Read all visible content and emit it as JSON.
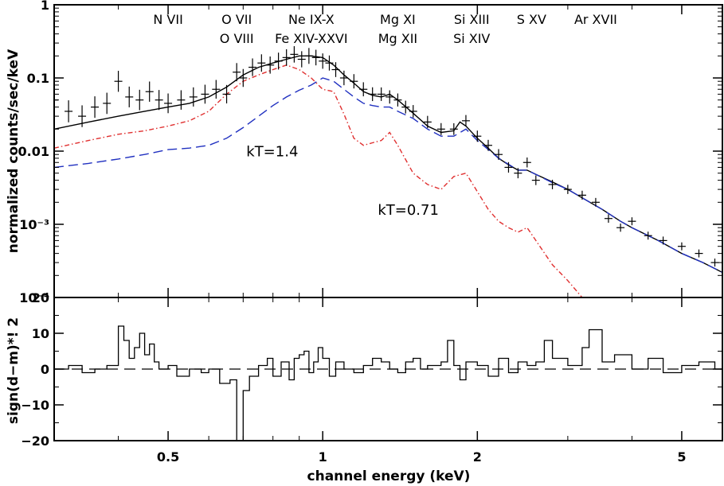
{
  "chart_data": [
    {
      "type": "line",
      "panel": "spectrum",
      "title": "",
      "xlabel": "channel energy (keV)",
      "ylabel": "normalized counts/sec/keV",
      "xscale": "log",
      "yscale": "log",
      "xlim": [
        0.3,
        6.0
      ],
      "ylim": [
        0.0001,
        1
      ],
      "yticks": [
        {
          "value": 1,
          "label": "1"
        },
        {
          "value": 0.1,
          "label": "0.1"
        },
        {
          "value": 0.01,
          "label": "0.01"
        },
        {
          "value": 0.001,
          "label": "10⁻³"
        },
        {
          "value": 0.0001,
          "label": "10⁻⁴"
        }
      ],
      "line_labels": [
        {
          "energy": 0.5,
          "lines": [
            "N VII"
          ]
        },
        {
          "energy": 0.68,
          "lines": [
            "O  VII",
            "O VIII"
          ]
        },
        {
          "energy": 0.95,
          "lines": [
            "Ne IX-X",
            "Fe XIV-XXVI"
          ]
        },
        {
          "energy": 1.4,
          "lines": [
            "Mg XI",
            "Mg XII"
          ]
        },
        {
          "energy": 1.95,
          "lines": [
            "Si XIII",
            "Si XIV"
          ]
        },
        {
          "energy": 2.55,
          "lines": [
            "S XV"
          ]
        },
        {
          "energy": 3.4,
          "lines": [
            "Ar XVII"
          ]
        }
      ],
      "annotations": [
        {
          "text": "kT=1.4",
          "x": 0.71,
          "y": 0.0085
        },
        {
          "text": "kT=0.71",
          "x": 1.28,
          "y": 0.00135
        }
      ],
      "series": [
        {
          "role": "total model",
          "color": "#000000",
          "style": "solid",
          "x": [
            0.3,
            0.35,
            0.4,
            0.45,
            0.5,
            0.55,
            0.6,
            0.65,
            0.7,
            0.75,
            0.8,
            0.85,
            0.9,
            0.95,
            1.0,
            1.05,
            1.1,
            1.15,
            1.2,
            1.25,
            1.3,
            1.35,
            1.4,
            1.5,
            1.6,
            1.7,
            1.8,
            1.85,
            1.9,
            2.0,
            2.1,
            2.2,
            2.3,
            2.4,
            2.5,
            2.6,
            2.8,
            3.0,
            3.2,
            3.5,
            3.8,
            4.0,
            4.5,
            5.0,
            5.5,
            6.0
          ],
          "y": [
            0.02,
            0.025,
            0.03,
            0.035,
            0.04,
            0.045,
            0.055,
            0.075,
            0.11,
            0.14,
            0.16,
            0.18,
            0.2,
            0.2,
            0.19,
            0.15,
            0.11,
            0.085,
            0.065,
            0.058,
            0.055,
            0.06,
            0.05,
            0.033,
            0.022,
            0.018,
            0.019,
            0.025,
            0.022,
            0.015,
            0.011,
            0.008,
            0.0065,
            0.0055,
            0.0055,
            0.0048,
            0.0038,
            0.003,
            0.0023,
            0.0016,
            0.0011,
            0.0009,
            0.0006,
            0.0004,
            0.0003,
            0.00022
          ]
        },
        {
          "role": "low-temperature component",
          "name": "kT=0.71",
          "color": "#e03030",
          "style": "dash-dot",
          "x": [
            0.3,
            0.35,
            0.4,
            0.45,
            0.5,
            0.55,
            0.6,
            0.65,
            0.7,
            0.75,
            0.8,
            0.85,
            0.9,
            0.95,
            1.0,
            1.05,
            1.1,
            1.15,
            1.2,
            1.25,
            1.3,
            1.35,
            1.4,
            1.5,
            1.6,
            1.7,
            1.8,
            1.9,
            2.0,
            2.1,
            2.2,
            2.3,
            2.4,
            2.5,
            2.6,
            2.8,
            3.0,
            3.2
          ],
          "y": [
            0.011,
            0.014,
            0.017,
            0.019,
            0.022,
            0.026,
            0.035,
            0.06,
            0.09,
            0.11,
            0.13,
            0.15,
            0.13,
            0.1,
            0.07,
            0.065,
            0.032,
            0.015,
            0.012,
            0.013,
            0.014,
            0.018,
            0.012,
            0.005,
            0.0035,
            0.003,
            0.0045,
            0.005,
            0.0028,
            0.0016,
            0.0011,
            0.0009,
            0.00078,
            0.0009,
            0.0006,
            0.00028,
            0.00017,
            0.0001
          ]
        },
        {
          "role": "high-temperature component",
          "name": "kT=1.4",
          "color": "#2030c0",
          "style": "long-dash",
          "x": [
            0.3,
            0.35,
            0.4,
            0.45,
            0.5,
            0.55,
            0.6,
            0.65,
            0.7,
            0.75,
            0.8,
            0.85,
            0.9,
            0.95,
            1.0,
            1.05,
            1.1,
            1.15,
            1.2,
            1.25,
            1.3,
            1.35,
            1.4,
            1.5,
            1.6,
            1.7,
            1.8,
            1.9,
            2.0,
            2.2,
            2.4,
            2.5,
            2.6,
            2.8,
            3.0,
            3.2,
            3.5,
            3.8,
            4.0,
            4.5,
            5.0,
            5.5,
            6.0
          ],
          "y": [
            0.006,
            0.0068,
            0.0078,
            0.009,
            0.0105,
            0.011,
            0.012,
            0.015,
            0.021,
            0.03,
            0.042,
            0.055,
            0.068,
            0.08,
            0.1,
            0.09,
            0.07,
            0.055,
            0.045,
            0.042,
            0.04,
            0.04,
            0.035,
            0.028,
            0.02,
            0.016,
            0.016,
            0.02,
            0.014,
            0.008,
            0.0055,
            0.0055,
            0.0048,
            0.0037,
            0.003,
            0.0023,
            0.0016,
            0.0011,
            0.0009,
            0.0006,
            0.0004,
            0.0003,
            0.00022
          ]
        },
        {
          "role": "observed data",
          "color": "#000000",
          "style": "crosses",
          "x": [
            0.3,
            0.32,
            0.34,
            0.36,
            0.38,
            0.4,
            0.42,
            0.44,
            0.46,
            0.48,
            0.5,
            0.53,
            0.56,
            0.59,
            0.62,
            0.65,
            0.68,
            0.7,
            0.73,
            0.76,
            0.79,
            0.82,
            0.85,
            0.88,
            0.91,
            0.94,
            0.97,
            1.0,
            1.03,
            1.06,
            1.1,
            1.15,
            1.2,
            1.25,
            1.3,
            1.35,
            1.4,
            1.45,
            1.5,
            1.6,
            1.7,
            1.8,
            1.9,
            2.0,
            2.1,
            2.2,
            2.3,
            2.4,
            2.5,
            2.6,
            2.8,
            3.0,
            3.2,
            3.4,
            3.6,
            3.8,
            4.0,
            4.3,
            4.6,
            5.0,
            5.4,
            5.8
          ],
          "y": [
            0.05,
            0.035,
            0.03,
            0.04,
            0.045,
            0.09,
            0.055,
            0.05,
            0.065,
            0.05,
            0.045,
            0.05,
            0.055,
            0.06,
            0.07,
            0.06,
            0.12,
            0.1,
            0.14,
            0.16,
            0.15,
            0.17,
            0.19,
            0.21,
            0.18,
            0.2,
            0.19,
            0.17,
            0.16,
            0.13,
            0.1,
            0.09,
            0.07,
            0.06,
            0.06,
            0.055,
            0.05,
            0.04,
            0.035,
            0.025,
            0.02,
            0.02,
            0.026,
            0.016,
            0.012,
            0.009,
            0.006,
            0.005,
            0.007,
            0.004,
            0.0035,
            0.003,
            0.0025,
            0.002,
            0.0012,
            0.0009,
            0.0011,
            0.0007,
            0.0006,
            0.0005,
            0.0004,
            0.0003
          ]
        }
      ]
    },
    {
      "type": "line",
      "panel": "residuals",
      "title": "",
      "xlabel": "channel energy (keV)",
      "ylabel": "sign(d−m)*! 2",
      "xscale": "log",
      "xlim": [
        0.3,
        6.0
      ],
      "ylim": [
        -20,
        20
      ],
      "yticks": [
        {
          "value": 20,
          "label": "20"
        },
        {
          "value": 10,
          "label": "10"
        },
        {
          "value": 0,
          "label": "0"
        },
        {
          "value": -10,
          "label": "−10"
        },
        {
          "value": -20,
          "label": "−20"
        }
      ],
      "xticks": [
        {
          "value": 0.5,
          "label": "0.5"
        },
        {
          "value": 1,
          "label": "1"
        },
        {
          "value": 2,
          "label": "2"
        },
        {
          "value": 5,
          "label": "5"
        }
      ],
      "series": [
        {
          "role": "residuals",
          "color": "#000000",
          "style": "histogram",
          "x": [
            0.3,
            0.32,
            0.34,
            0.36,
            0.38,
            0.4,
            0.41,
            0.42,
            0.43,
            0.44,
            0.45,
            0.46,
            0.47,
            0.48,
            0.5,
            0.52,
            0.55,
            0.58,
            0.6,
            0.63,
            0.66,
            0.68,
            0.69,
            0.7,
            0.72,
            0.75,
            0.78,
            0.8,
            0.83,
            0.86,
            0.88,
            0.9,
            0.92,
            0.94,
            0.96,
            0.98,
            1.0,
            1.03,
            1.06,
            1.1,
            1.15,
            1.2,
            1.25,
            1.3,
            1.35,
            1.4,
            1.45,
            1.5,
            1.55,
            1.6,
            1.7,
            1.75,
            1.8,
            1.85,
            1.9,
            2.0,
            2.1,
            2.2,
            2.3,
            2.4,
            2.5,
            2.6,
            2.7,
            2.8,
            3.0,
            3.2,
            3.3,
            3.5,
            3.7,
            4.0,
            4.3,
            4.6,
            5.0,
            5.4,
            5.8
          ],
          "y": [
            0,
            1,
            -1,
            0,
            1,
            12,
            8,
            3,
            6,
            10,
            4,
            7,
            2,
            0,
            1,
            -2,
            0,
            -1,
            0,
            -4,
            -3,
            -20,
            -20,
            -6,
            -2,
            1,
            3,
            -2,
            2,
            -3,
            3,
            4,
            5,
            -1,
            2,
            6,
            3,
            -2,
            2,
            0,
            -1,
            1,
            3,
            2,
            0,
            -1,
            2,
            3,
            0,
            1,
            2,
            8,
            1,
            -3,
            2,
            1,
            -2,
            3,
            -1,
            2,
            1,
            2,
            8,
            3,
            1,
            6,
            11,
            2,
            4,
            0,
            3,
            -1,
            1,
            2,
            0
          ]
        }
      ]
    }
  ]
}
